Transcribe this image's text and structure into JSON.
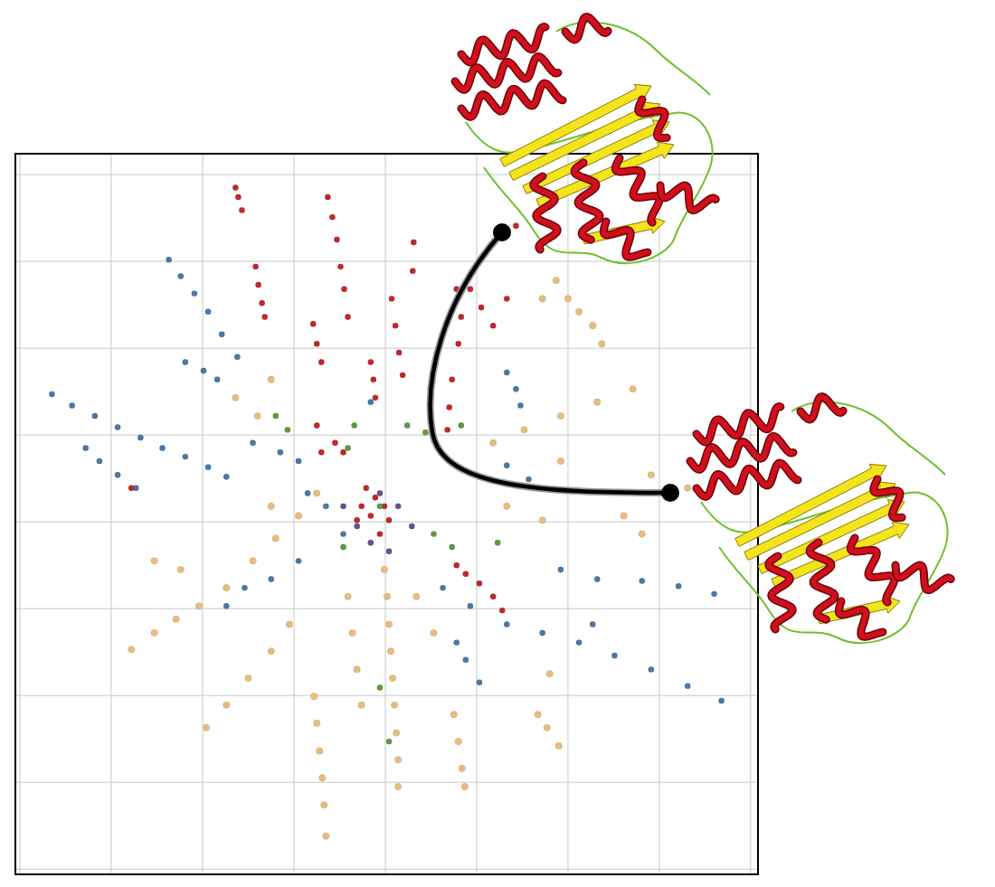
{
  "chart_data": {
    "type": "scatter",
    "xlim": [
      -0.05,
      8.08
    ],
    "ylim": [
      -0.06,
      8.24
    ],
    "xticks": [
      0,
      1,
      2,
      3,
      4,
      5,
      6,
      7,
      8
    ],
    "yticks": [
      0,
      1,
      2,
      3,
      4,
      5,
      6,
      7,
      8
    ],
    "grid": true,
    "tick_labels": false,
    "series": [
      {
        "color": "#e8bc80",
        "marker": "circle",
        "x": [
          1.22,
          1.47,
          1.71,
          1.96,
          2.26,
          2.55,
          2.8,
          3.05,
          1.47,
          1.76,
          2.04,
          2.26,
          2.5,
          2.75,
          2.95,
          3.99,
          4.02,
          4.04,
          4.06,
          4.08,
          4.1,
          4.12,
          4.14,
          4.14,
          3.22,
          3.25,
          3.28,
          3.31,
          3.33,
          3.35,
          3.59,
          3.64,
          3.69,
          3.74,
          4.75,
          4.8,
          4.84,
          4.87,
          4.34,
          4.53,
          5.67,
          5.77,
          5.9,
          5.8,
          5.87,
          6.0,
          6.12,
          6.27,
          6.37,
          5.18,
          5.52,
          5.92,
          6.32,
          6.71,
          5.33,
          5.72,
          6.61,
          6.81,
          2.36,
          2.6,
          2.75,
          5.72,
          6.91,
          7.31,
          5.92,
          2.75,
          3.25
        ],
        "values": [
          2.53,
          2.72,
          2.88,
          3.03,
          3.24,
          3.55,
          3.81,
          4.07,
          3.55,
          3.45,
          1.63,
          1.89,
          2.2,
          2.51,
          2.82,
          3.45,
          3.14,
          2.82,
          2.51,
          2.2,
          1.89,
          1.57,
          1.26,
          0.95,
          1.99,
          1.68,
          1.36,
          1.05,
          0.74,
          0.38,
          3.14,
          2.72,
          2.3,
          1.89,
          1.78,
          1.47,
          1.16,
          0.95,
          3.14,
          2.72,
          1.78,
          1.63,
          1.42,
          2.25,
          6.78,
          6.57,
          6.42,
          6.26,
          6.05,
          4.91,
          5.06,
          5.22,
          5.38,
          5.53,
          4.18,
          4.02,
          4.07,
          3.86,
          5.43,
          5.22,
          5.64,
          6.57,
          4.54,
          4.39,
          4.7,
          4.18,
          4.33
        ]
      },
      {
        "color": "#4a78a8",
        "marker": "circle",
        "x": [
          1.63,
          1.76,
          1.91,
          2.06,
          2.21,
          2.38,
          0.35,
          0.57,
          0.82,
          1.07,
          1.32,
          1.56,
          1.81,
          2.06,
          2.26,
          0.72,
          0.87,
          1.07,
          1.27,
          1.81,
          2.01,
          2.16,
          2.55,
          2.85,
          3.05,
          3.15,
          3.35,
          3.54,
          3.05,
          2.75,
          2.46,
          2.26,
          5.33,
          5.43,
          5.48,
          5.33,
          5.57,
          4.63,
          4.93,
          5.33,
          5.72,
          6.12,
          6.51,
          6.91,
          7.31,
          7.68,
          5.92,
          6.32,
          6.81,
          7.21,
          7.6,
          4.78,
          4.88,
          5.03,
          6.27,
          3.84
        ],
        "values": [
          7.02,
          6.83,
          6.63,
          6.42,
          6.16,
          5.9,
          5.47,
          5.34,
          5.22,
          5.09,
          4.97,
          4.85,
          4.75,
          4.63,
          4.52,
          4.85,
          4.7,
          4.54,
          4.39,
          5.84,
          5.74,
          5.64,
          4.91,
          4.8,
          4.7,
          4.33,
          4.18,
          3.86,
          3.55,
          3.34,
          3.24,
          3.03,
          5.72,
          5.53,
          5.34,
          4.65,
          4.49,
          3.24,
          3.03,
          2.82,
          2.72,
          2.61,
          2.46,
          2.3,
          2.11,
          1.94,
          3.45,
          3.34,
          3.32,
          3.26,
          3.17,
          2.61,
          2.41,
          2.15,
          2.82,
          5.38
        ]
      },
      {
        "color": "#c0282e",
        "marker": "circle",
        "x": [
          2.36,
          2.39,
          2.43,
          2.58,
          2.61,
          2.65,
          2.68,
          3.37,
          3.42,
          3.47,
          3.51,
          3.55,
          3.59,
          3.21,
          3.25,
          3.3,
          3.84,
          3.87,
          3.89,
          4.07,
          4.11,
          4.15,
          4.19,
          4.31,
          4.3,
          4.78,
          4.83,
          4.8,
          4.73,
          4.7,
          4.68,
          4.93,
          5.05,
          5.18,
          5.43,
          5.33,
          3.79,
          3.89,
          3.99,
          3.84,
          4.04,
          3.94,
          3.74,
          3.69,
          3.54,
          3.45,
          3.25,
          3.3,
          4.78,
          4.88,
          5.03,
          5.18,
          5.28,
          1.22
        ],
        "values": [
          7.85,
          7.74,
          7.59,
          6.94,
          6.73,
          6.52,
          6.36,
          7.74,
          7.51,
          7.25,
          6.94,
          6.68,
          6.36,
          6.28,
          6.05,
          5.84,
          5.84,
          5.64,
          5.43,
          6.57,
          6.26,
          5.95,
          5.69,
          7.22,
          6.89,
          6.68,
          6.36,
          6.05,
          5.64,
          5.32,
          5.06,
          6.68,
          6.47,
          6.26,
          7.41,
          6.57,
          4.39,
          4.28,
          4.18,
          4.07,
          4.02,
          3.86,
          4.18,
          4.02,
          4.8,
          4.91,
          5.11,
          4.8,
          3.5,
          3.4,
          3.29,
          3.14,
          2.98,
          4.39
        ]
      },
      {
        "color": "#5e9a3e",
        "marker": "circle",
        "x": [
          2.8,
          2.93,
          4.24,
          4.44,
          3.59,
          3.66,
          3.94,
          4.53,
          4.73,
          3.54,
          3.94,
          4.04,
          5.23,
          4.83
        ],
        "values": [
          5.22,
          5.06,
          5.11,
          5.03,
          4.85,
          5.11,
          4.18,
          3.86,
          3.71,
          3.71,
          2.09,
          1.47,
          3.76,
          5.11
        ]
      },
      {
        "color": "#6b4c9a",
        "marker": "circle",
        "x": [
          3.54,
          3.69,
          3.94,
          4.14,
          4.29,
          3.84,
          4.04
        ],
        "values": [
          4.18,
          3.95,
          4.33,
          4.18,
          3.95,
          3.76,
          3.66
        ]
      }
    ]
  }
}
